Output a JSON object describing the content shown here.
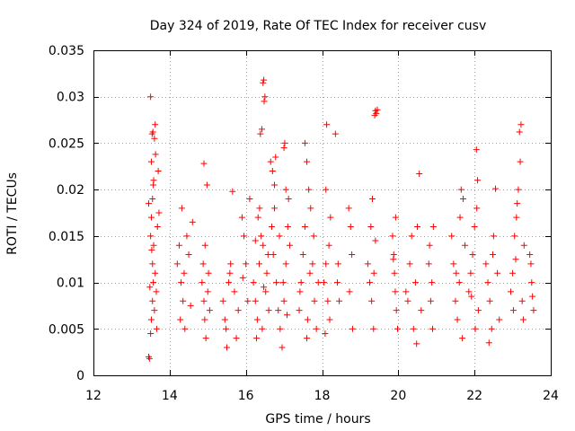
{
  "chart_data": {
    "type": "scatter",
    "title": "Day 324 of 2019, Rate Of TEC Index for receiver cusv",
    "xlabel": "GPS time / hours",
    "ylabel": "ROTI / TECUs",
    "xlim": [
      12,
      24
    ],
    "ylim": [
      0,
      0.035
    ],
    "x_ticks": [
      12,
      14,
      16,
      18,
      20,
      22,
      24
    ],
    "y_ticks": [
      0,
      0.005,
      0.01,
      0.015,
      0.02,
      0.025,
      0.03,
      0.035
    ],
    "x_tick_labels": [
      "12",
      "14",
      "16",
      "18",
      "20",
      "22",
      "24"
    ],
    "y_tick_labels": [
      "0",
      "0.005",
      "0.01",
      "0.015",
      "0.02",
      "0.025",
      "0.03",
      "0.035"
    ],
    "grid": true,
    "marker": "+",
    "marker_color": "#ff0000",
    "series": [
      {
        "name": "ROTI",
        "points": [
          [
            13.45,
            0.002
          ],
          [
            13.47,
            0.0018
          ],
          [
            13.5,
            0.0045
          ],
          [
            13.52,
            0.006
          ],
          [
            13.55,
            0.008
          ],
          [
            13.57,
            0.01
          ],
          [
            13.55,
            0.012
          ],
          [
            13.5,
            0.015
          ],
          [
            13.52,
            0.017
          ],
          [
            13.55,
            0.019
          ],
          [
            13.58,
            0.021
          ],
          [
            13.52,
            0.023
          ],
          [
            13.54,
            0.026
          ],
          [
            13.56,
            0.0262
          ],
          [
            13.6,
            0.0255
          ],
          [
            13.62,
            0.027
          ],
          [
            13.5,
            0.03
          ],
          [
            13.58,
            0.014
          ],
          [
            13.62,
            0.011
          ],
          [
            13.65,
            0.009
          ],
          [
            13.6,
            0.007
          ],
          [
            13.66,
            0.005
          ],
          [
            13.7,
            0.022
          ],
          [
            13.72,
            0.0175
          ],
          [
            13.68,
            0.016
          ],
          [
            13.48,
            0.0095
          ],
          [
            13.53,
            0.0135
          ],
          [
            13.57,
            0.0205
          ],
          [
            13.63,
            0.0238
          ],
          [
            13.45,
            0.0185
          ],
          [
            14.2,
            0.012
          ],
          [
            14.25,
            0.014
          ],
          [
            14.3,
            0.01
          ],
          [
            14.35,
            0.008
          ],
          [
            14.28,
            0.006
          ],
          [
            14.4,
            0.005
          ],
          [
            14.45,
            0.015
          ],
          [
            14.5,
            0.013
          ],
          [
            14.32,
            0.018
          ],
          [
            14.55,
            0.0075
          ],
          [
            14.6,
            0.0165
          ],
          [
            14.38,
            0.011
          ],
          [
            14.85,
            0.01
          ],
          [
            14.9,
            0.008
          ],
          [
            14.92,
            0.006
          ],
          [
            14.95,
            0.004
          ],
          [
            14.88,
            0.012
          ],
          [
            14.98,
            0.0205
          ],
          [
            14.9,
            0.0228
          ],
          [
            15.0,
            0.009
          ],
          [
            15.05,
            0.007
          ],
          [
            14.93,
            0.014
          ],
          [
            15.02,
            0.011
          ],
          [
            15.4,
            0.008
          ],
          [
            15.45,
            0.006
          ],
          [
            15.5,
            0.003
          ],
          [
            15.55,
            0.01
          ],
          [
            15.6,
            0.012
          ],
          [
            15.48,
            0.005
          ],
          [
            15.65,
            0.0198
          ],
          [
            15.7,
            0.009
          ],
          [
            15.75,
            0.004
          ],
          [
            15.8,
            0.007
          ],
          [
            15.58,
            0.011
          ],
          [
            15.9,
            0.017
          ],
          [
            15.95,
            0.015
          ],
          [
            16.0,
            0.012
          ],
          [
            16.05,
            0.008
          ],
          [
            16.1,
            0.019
          ],
          [
            15.92,
            0.0105
          ],
          [
            16.2,
            0.01
          ],
          [
            16.25,
            0.008
          ],
          [
            16.3,
            0.006
          ],
          [
            16.35,
            0.012
          ],
          [
            16.4,
            0.015
          ],
          [
            16.45,
            0.014
          ],
          [
            16.38,
            0.026
          ],
          [
            16.42,
            0.0265
          ],
          [
            16.45,
            0.0315
          ],
          [
            16.47,
            0.0318
          ],
          [
            16.48,
            0.0295
          ],
          [
            16.5,
            0.03
          ],
          [
            16.52,
            0.009
          ],
          [
            16.55,
            0.011
          ],
          [
            16.6,
            0.007
          ],
          [
            16.32,
            0.017
          ],
          [
            16.28,
            0.004
          ],
          [
            16.36,
            0.018
          ],
          [
            16.43,
            0.005
          ],
          [
            16.58,
            0.013
          ],
          [
            16.25,
            0.0145
          ],
          [
            16.47,
            0.0095
          ],
          [
            16.65,
            0.023
          ],
          [
            16.7,
            0.022
          ],
          [
            16.75,
            0.018
          ],
          [
            16.68,
            0.016
          ],
          [
            16.72,
            0.013
          ],
          [
            16.8,
            0.01
          ],
          [
            16.85,
            0.007
          ],
          [
            16.9,
            0.005
          ],
          [
            16.95,
            0.003
          ],
          [
            17.0,
            0.008
          ],
          [
            17.05,
            0.012
          ],
          [
            16.78,
            0.0235
          ],
          [
            16.75,
            0.0205
          ],
          [
            16.88,
            0.015
          ],
          [
            16.98,
            0.01
          ],
          [
            17.08,
            0.0065
          ],
          [
            17.0,
            0.0245
          ],
          [
            17.02,
            0.025
          ],
          [
            17.05,
            0.02
          ],
          [
            17.1,
            0.016
          ],
          [
            17.15,
            0.014
          ],
          [
            17.12,
            0.019
          ],
          [
            17.4,
            0.007
          ],
          [
            17.45,
            0.01
          ],
          [
            17.5,
            0.013
          ],
          [
            17.55,
            0.016
          ],
          [
            17.6,
            0.004
          ],
          [
            17.42,
            0.009
          ],
          [
            17.55,
            0.025
          ],
          [
            17.6,
            0.023
          ],
          [
            17.65,
            0.02
          ],
          [
            17.7,
            0.018
          ],
          [
            17.75,
            0.012
          ],
          [
            17.8,
            0.008
          ],
          [
            17.85,
            0.005
          ],
          [
            17.9,
            0.01
          ],
          [
            17.62,
            0.006
          ],
          [
            17.78,
            0.015
          ],
          [
            17.68,
            0.011
          ],
          [
            18.05,
            0.01
          ],
          [
            18.1,
            0.012
          ],
          [
            18.15,
            0.008
          ],
          [
            18.2,
            0.006
          ],
          [
            18.12,
            0.027
          ],
          [
            18.18,
            0.014
          ],
          [
            18.08,
            0.0045
          ],
          [
            18.22,
            0.017
          ],
          [
            18.1,
            0.02
          ],
          [
            18.35,
            0.026
          ],
          [
            18.4,
            0.01
          ],
          [
            18.45,
            0.008
          ],
          [
            18.42,
            0.012
          ],
          [
            18.7,
            0.018
          ],
          [
            18.75,
            0.016
          ],
          [
            18.8,
            0.005
          ],
          [
            18.72,
            0.009
          ],
          [
            18.78,
            0.013
          ],
          [
            19.2,
            0.012
          ],
          [
            19.25,
            0.01
          ],
          [
            19.3,
            0.008
          ],
          [
            19.35,
            0.005
          ],
          [
            19.38,
            0.028
          ],
          [
            19.4,
            0.0285
          ],
          [
            19.42,
            0.0282
          ],
          [
            19.45,
            0.0286
          ],
          [
            19.32,
            0.019
          ],
          [
            19.28,
            0.016
          ],
          [
            19.4,
            0.0145
          ],
          [
            19.36,
            0.011
          ],
          [
            19.85,
            0.015
          ],
          [
            19.88,
            0.013
          ],
          [
            19.9,
            0.011
          ],
          [
            19.92,
            0.009
          ],
          [
            19.95,
            0.007
          ],
          [
            19.98,
            0.005
          ],
          [
            19.93,
            0.017
          ],
          [
            19.87,
            0.0125
          ],
          [
            20.2,
            0.009
          ],
          [
            20.25,
            0.008
          ],
          [
            20.3,
            0.012
          ],
          [
            20.35,
            0.015
          ],
          [
            20.4,
            0.005
          ],
          [
            20.45,
            0.01
          ],
          [
            20.5,
            0.016
          ],
          [
            20.55,
            0.0217
          ],
          [
            20.48,
            0.0034
          ],
          [
            20.6,
            0.007
          ],
          [
            20.8,
            0.012
          ],
          [
            20.85,
            0.008
          ],
          [
            20.9,
            0.005
          ],
          [
            20.88,
            0.01
          ],
          [
            20.82,
            0.014
          ],
          [
            20.92,
            0.016
          ],
          [
            21.4,
            0.015
          ],
          [
            21.45,
            0.012
          ],
          [
            21.5,
            0.008
          ],
          [
            21.55,
            0.006
          ],
          [
            21.6,
            0.01
          ],
          [
            21.65,
            0.02
          ],
          [
            21.7,
            0.019
          ],
          [
            21.75,
            0.014
          ],
          [
            21.68,
            0.004
          ],
          [
            21.52,
            0.011
          ],
          [
            21.62,
            0.017
          ],
          [
            21.85,
            0.009
          ],
          [
            21.9,
            0.011
          ],
          [
            21.95,
            0.013
          ],
          [
            22.0,
            0.016
          ],
          [
            22.05,
            0.0243
          ],
          [
            22.08,
            0.021
          ],
          [
            22.1,
            0.007
          ],
          [
            22.02,
            0.005
          ],
          [
            21.92,
            0.0085
          ],
          [
            22.06,
            0.018
          ],
          [
            22.3,
            0.012
          ],
          [
            22.35,
            0.01
          ],
          [
            22.4,
            0.008
          ],
          [
            22.45,
            0.005
          ],
          [
            22.5,
            0.015
          ],
          [
            22.55,
            0.0201
          ],
          [
            22.6,
            0.011
          ],
          [
            22.65,
            0.006
          ],
          [
            22.38,
            0.0035
          ],
          [
            22.48,
            0.013
          ],
          [
            22.95,
            0.009
          ],
          [
            23.0,
            0.011
          ],
          [
            23.05,
            0.015
          ],
          [
            23.1,
            0.017
          ],
          [
            23.15,
            0.02
          ],
          [
            23.2,
            0.023
          ],
          [
            23.18,
            0.0262
          ],
          [
            23.22,
            0.027
          ],
          [
            23.25,
            0.008
          ],
          [
            23.28,
            0.006
          ],
          [
            23.12,
            0.0185
          ],
          [
            23.08,
            0.0125
          ],
          [
            23.02,
            0.007
          ],
          [
            23.3,
            0.014
          ],
          [
            23.45,
            0.013
          ],
          [
            23.5,
            0.01
          ],
          [
            23.55,
            0.007
          ],
          [
            23.48,
            0.012
          ],
          [
            23.52,
            0.0085
          ]
        ]
      }
    ]
  }
}
